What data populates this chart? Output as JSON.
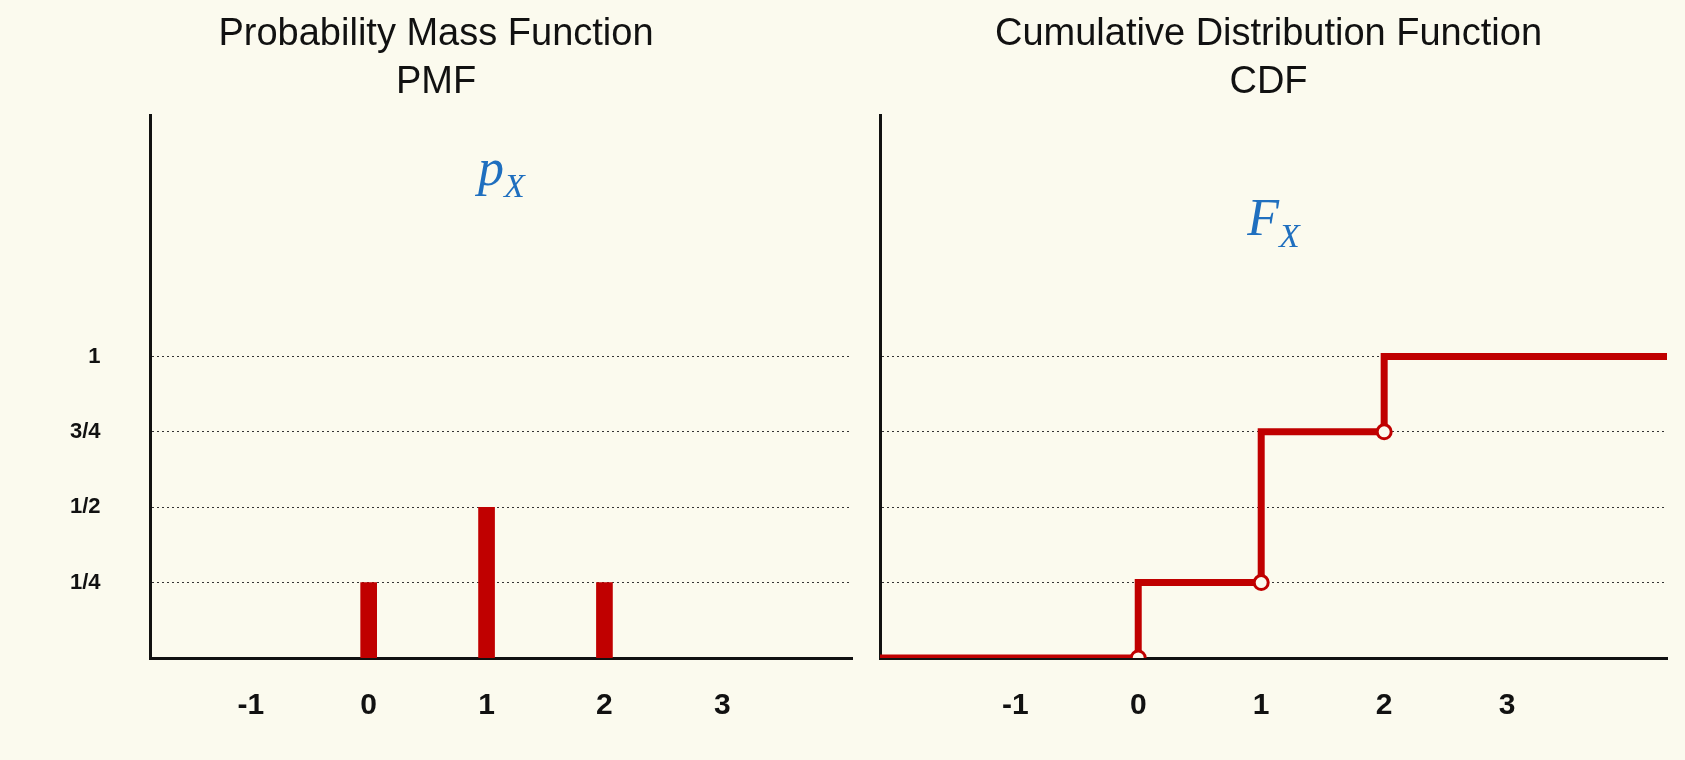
{
  "chart_data": [
    {
      "type": "bar",
      "title": "Probability Mass Function",
      "subtitle": "PMF",
      "annotations": [
        "p$_{X}$"
      ],
      "x": [
        0,
        1,
        2
      ],
      "values": [
        0.25,
        0.5,
        0.25
      ],
      "color": "#c00000",
      "xlim": [
        -1.85,
        4.1
      ],
      "xticks": [
        -1,
        0,
        1,
        2,
        3
      ],
      "ylim": [
        0,
        1.8
      ],
      "yticks": [
        {
          "value": 0.25,
          "label": "1/4"
        },
        {
          "value": 0.5,
          "label": "1/2"
        },
        {
          "value": 0.75,
          "label": "3/4"
        },
        {
          "value": 1,
          "label": "1"
        }
      ],
      "grid": "y"
    },
    {
      "type": "step",
      "title": "Cumulative Distribution Function",
      "subtitle": "CDF",
      "annotations": [
        "F$_{X}$"
      ],
      "series": [
        {
          "color": "#c00000",
          "x": [
            -2.1,
            0,
            1,
            2,
            4.3
          ],
          "values": [
            0,
            0.25,
            0.75,
            1,
            1
          ]
        },
        {
          "type": "scatter",
          "color": "#c00000",
          "marker": "circle",
          "x": [
            0,
            1,
            2
          ],
          "values": [
            0,
            0.25,
            0.75
          ]
        }
      ],
      "xlim": [
        -2.1,
        4.3
      ],
      "xticks": [
        -1,
        0,
        1,
        2,
        3
      ],
      "ylim": [
        0,
        1.8
      ],
      "yticks": [
        0.25,
        0.5,
        0.75,
        1
      ],
      "grid": "y",
      "tick_labels": "x"
    }
  ]
}
